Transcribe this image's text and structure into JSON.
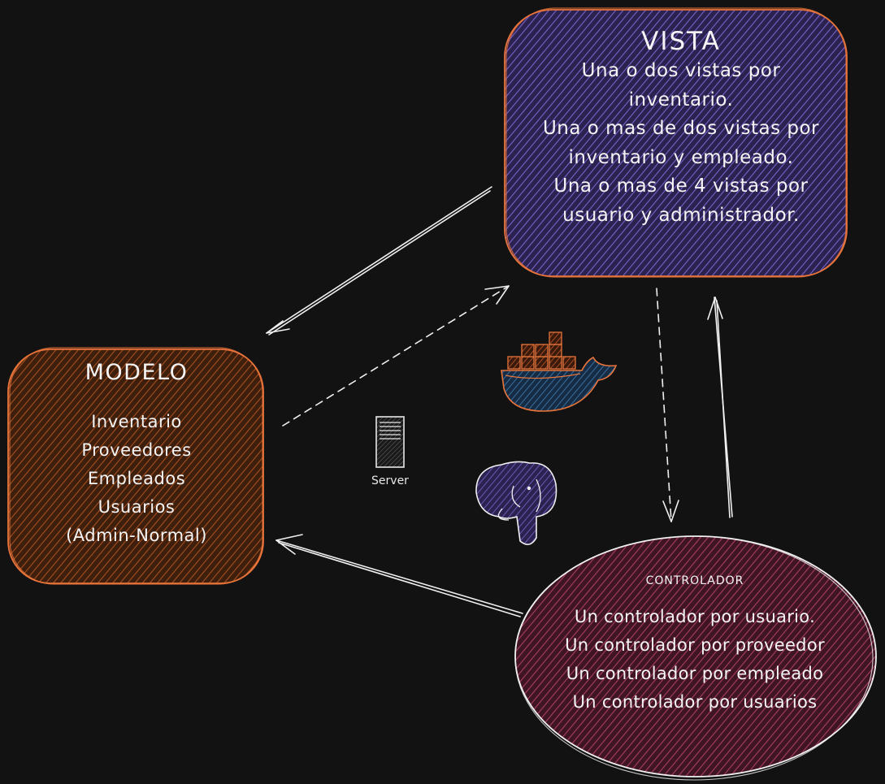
{
  "diagram": {
    "nodes": {
      "vista": {
        "title": "VISTA",
        "lines": [
          "Una o dos vistas por",
          "inventario.",
          "Una o mas de dos vistas por",
          "inventario y empleado.",
          "Una o mas de 4 vistas por",
          "usuario y administrador."
        ],
        "fill": "#3d2e6b",
        "stroke": "#e8743b"
      },
      "modelo": {
        "title": "MODELO",
        "lines": [
          "Inventario",
          "Proveedores",
          "Empleados",
          "Usuarios",
          "(Admin-Normal)"
        ],
        "fill": "#5a2c12",
        "stroke": "#e8743b"
      },
      "controlador": {
        "title": "CONTROLADOR",
        "lines": [
          "Un controlador por usuario.",
          "Un controlador por proveedor",
          "Un controlador por empleado",
          "Un controlador por usuarios"
        ],
        "fill": "#5e2337",
        "stroke": "#f0f0f0"
      }
    },
    "icons": [
      {
        "name": "server-icon",
        "label": "Server"
      },
      {
        "name": "docker-whale-icon"
      },
      {
        "name": "postgresql-elephant-icon"
      }
    ],
    "colors": {
      "background": "#121212",
      "arrow": "#f0f0f0",
      "docker_body": "#1f3f5e",
      "docker_stroke": "#e8743b",
      "postgres_body": "#3d2e6b"
    }
  }
}
